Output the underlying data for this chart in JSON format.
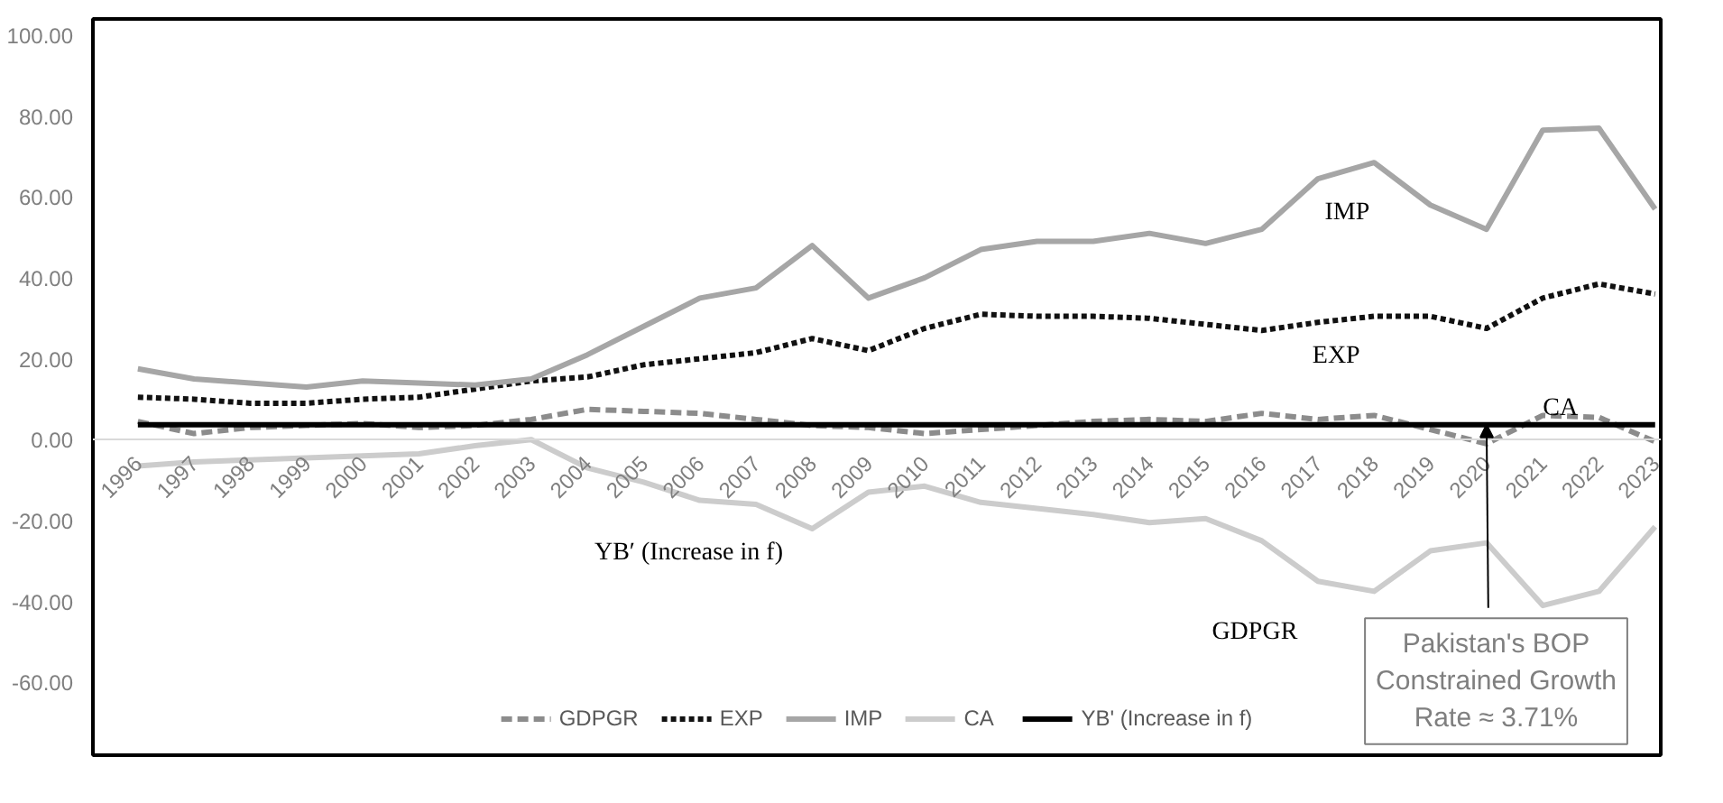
{
  "chart_data": {
    "type": "line",
    "categories": [
      "1996",
      "1997",
      "1998",
      "1999",
      "2000",
      "2001",
      "2002",
      "2003",
      "2004",
      "2005",
      "2006",
      "2007",
      "2008",
      "2009",
      "2010",
      "2011",
      "2012",
      "2013",
      "2014",
      "2015",
      "2016",
      "2017",
      "2018",
      "2019",
      "2020",
      "2021",
      "2022",
      "2023"
    ],
    "series": [
      {
        "name": "GDPGR",
        "color": "#8c8c8c",
        "line_style": "dashed",
        "values": [
          4.5,
          1.5,
          3,
          3.5,
          4,
          3,
          3.5,
          5,
          7.5,
          7,
          6.5,
          5,
          3.5,
          3,
          1.5,
          2.5,
          3.5,
          4.5,
          5,
          4.5,
          6.5,
          5,
          6,
          2.5,
          -1,
          6,
          5.5,
          -0.5
        ]
      },
      {
        "name": "EXP",
        "color": "#111111",
        "line_style": "dotted",
        "values": [
          10.5,
          10,
          9,
          9,
          10,
          10.5,
          12.5,
          14.5,
          15.5,
          18.5,
          20,
          21.5,
          25,
          22,
          27.5,
          31,
          30.5,
          30.5,
          30,
          28.5,
          27,
          29,
          30.5,
          30.5,
          27.5,
          35,
          38.5,
          36
        ]
      },
      {
        "name": "IMP",
        "color": "#a6a6a6",
        "line_style": "solid",
        "values": [
          17.5,
          15,
          14,
          13,
          14.5,
          14,
          13.5,
          15,
          21,
          28,
          35,
          37.5,
          48,
          35,
          40,
          47,
          49,
          49,
          51,
          48.5,
          52,
          64.5,
          68.5,
          58,
          52,
          76.5,
          77,
          57
        ]
      },
      {
        "name": "CA",
        "color": "#cccccc",
        "line_style": "solid",
        "values": [
          -6.5,
          -5.5,
          -5,
          -4.5,
          -4,
          -3.5,
          -1.5,
          0,
          -7,
          -10.5,
          -15,
          -16,
          -22,
          -13,
          -11.5,
          -15.5,
          -17,
          -18.5,
          -20.5,
          -19.5,
          -25,
          -35,
          -37.5,
          -27.5,
          -25.5,
          -41,
          -37.5,
          -21.5
        ]
      },
      {
        "name": "YB' (Increase in f)",
        "color": "#000000",
        "line_style": "solid",
        "values": [
          3.7,
          3.7,
          3.7,
          3.7,
          3.7,
          3.7,
          3.7,
          3.7,
          3.7,
          3.7,
          3.7,
          3.7,
          3.7,
          3.7,
          3.7,
          3.7,
          3.7,
          3.7,
          3.7,
          3.7,
          3.7,
          3.7,
          3.7,
          3.7,
          3.7,
          3.7,
          3.7,
          3.7
        ]
      }
    ],
    "ylim": [
      -78,
      104
    ],
    "yticks": [
      {
        "value": -60,
        "label": "-60.00"
      },
      {
        "value": -40,
        "label": "-40.00"
      },
      {
        "value": -20,
        "label": "-20.00"
      },
      {
        "value": 0,
        "label": "0.00"
      },
      {
        "value": 20,
        "label": "20.00"
      },
      {
        "value": 40,
        "label": "40.00"
      },
      {
        "value": 60,
        "label": "60.00"
      },
      {
        "value": 80,
        "label": "80.00"
      },
      {
        "value": 100,
        "label": "100.00"
      }
    ],
    "grid": false,
    "legend": "bottom",
    "marker": "none",
    "annotations": [
      "IMP",
      "EXP",
      "CA",
      "GDPGR",
      "YB′ (Increase in f)",
      {
        "text": "Pakistan's BOP\nConstrained Growth\nRate ≈ 3.71%",
        "x": "2020",
        "y": 3.7
      }
    ]
  }
}
